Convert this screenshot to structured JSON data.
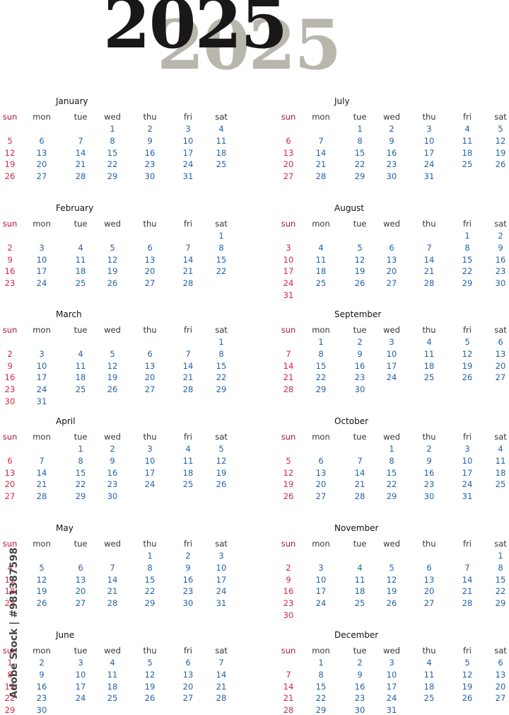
{
  "year": "2025",
  "weekdays": [
    "sun",
    "mon",
    "tue",
    "wed",
    "thu",
    "fri",
    "sat"
  ],
  "months": [
    {
      "name": "January",
      "start": 3,
      "days": 31
    },
    {
      "name": "February",
      "start": 6,
      "days": 28
    },
    {
      "name": "March",
      "start": 6,
      "days": 31
    },
    {
      "name": "April",
      "start": 2,
      "days": 30
    },
    {
      "name": "May",
      "start": 4,
      "days": 31
    },
    {
      "name": "June",
      "start": 0,
      "days": 30
    },
    {
      "name": "July",
      "start": 2,
      "days": 31
    },
    {
      "name": "August",
      "start": 5,
      "days": 31
    },
    {
      "name": "September",
      "start": 1,
      "days": 30
    },
    {
      "name": "October",
      "start": 3,
      "days": 31
    },
    {
      "name": "November",
      "start": 6,
      "days": 30
    },
    {
      "name": "December",
      "start": 1,
      "days": 31
    }
  ],
  "colors": {
    "sunday_header": "#b0163a",
    "sunday_day": "#d6263e",
    "day": "#2462a8",
    "header": "#333333",
    "title_shadow": "#b9b6ad",
    "title": "#1a1718"
  },
  "vertical_mark": "Adobe Stock | #981387598"
}
